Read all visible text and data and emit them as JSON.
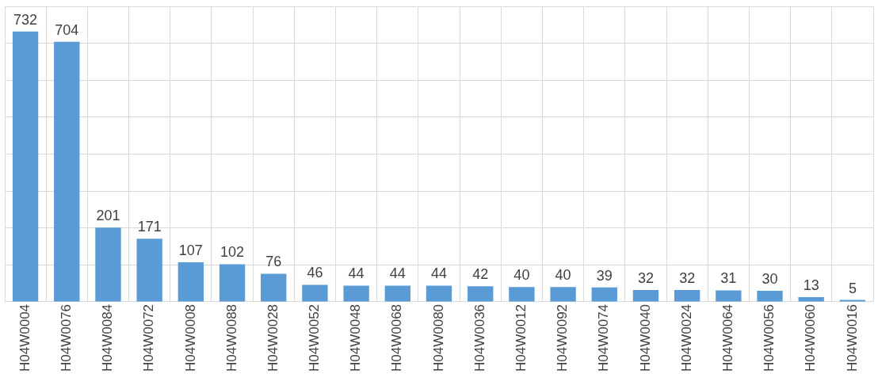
{
  "chart_data": {
    "type": "bar",
    "categories": [
      "H04W0004",
      "H04W0076",
      "H04W0084",
      "H04W0072",
      "H04W0008",
      "H04W0088",
      "H04W0028",
      "H04W0052",
      "H04W0048",
      "H04W0068",
      "H04W0080",
      "H04W0036",
      "H04W0012",
      "H04W0092",
      "H04W0074",
      "H04W0040",
      "H04W0024",
      "H04W0064",
      "H04W0056",
      "H04W0060",
      "H04W0016"
    ],
    "values": [
      732,
      704,
      201,
      171,
      107,
      102,
      76,
      46,
      44,
      44,
      44,
      42,
      40,
      40,
      39,
      32,
      32,
      31,
      30,
      13,
      5
    ],
    "color": "#5b9bd5",
    "ylim": [
      0,
      800
    ],
    "yticks": [
      {
        "value": 0,
        "label": null
      },
      {
        "value": 100,
        "label": null
      },
      {
        "value": 200,
        "label": null
      },
      {
        "value": 300,
        "label": null
      },
      {
        "value": 400,
        "label": null
      },
      {
        "value": 500,
        "label": null
      },
      {
        "value": 600,
        "label": null
      },
      {
        "value": 700,
        "label": null
      },
      {
        "value": 800,
        "label": null
      }
    ],
    "tick_labels": "x",
    "grid": true,
    "data_labels": true
  }
}
